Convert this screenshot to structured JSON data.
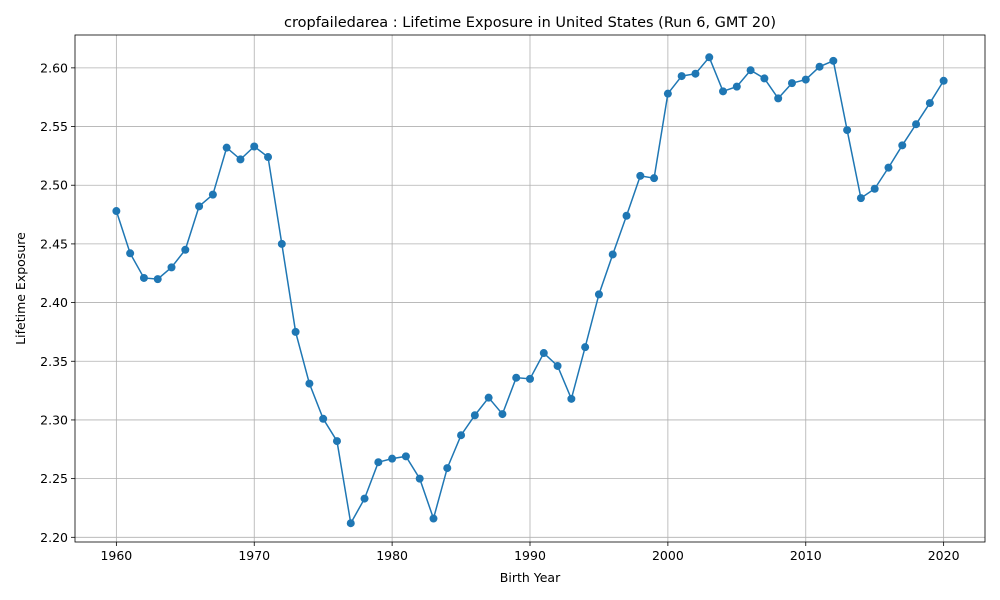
{
  "chart_data": {
    "type": "line",
    "title": "cropfailedarea : Lifetime Exposure in United States (Run 6, GMT 20)",
    "xlabel": "Birth Year",
    "ylabel": "Lifetime Exposure",
    "xlim": [
      1957,
      2023
    ],
    "ylim": [
      2.196,
      2.628
    ],
    "xticks": [
      1960,
      1970,
      1980,
      1990,
      2000,
      2010,
      2020
    ],
    "yticks": [
      2.2,
      2.25,
      2.3,
      2.35,
      2.4,
      2.45,
      2.5,
      2.55,
      2.6
    ],
    "grid": true,
    "color": "#1f77b4",
    "marker": "circle",
    "x": [
      1960,
      1961,
      1962,
      1963,
      1964,
      1965,
      1966,
      1967,
      1968,
      1969,
      1970,
      1971,
      1972,
      1973,
      1974,
      1975,
      1976,
      1977,
      1978,
      1979,
      1980,
      1981,
      1982,
      1983,
      1984,
      1985,
      1986,
      1987,
      1988,
      1989,
      1990,
      1991,
      1992,
      1993,
      1994,
      1995,
      1996,
      1997,
      1998,
      1999,
      2000,
      2001,
      2002,
      2003,
      2004,
      2005,
      2006,
      2007,
      2008,
      2009,
      2010,
      2011,
      2012,
      2013,
      2014,
      2015,
      2016,
      2017,
      2018,
      2019,
      2020
    ],
    "y": [
      2.478,
      2.442,
      2.421,
      2.42,
      2.43,
      2.445,
      2.482,
      2.492,
      2.532,
      2.522,
      2.533,
      2.524,
      2.45,
      2.375,
      2.331,
      2.301,
      2.282,
      2.212,
      2.233,
      2.264,
      2.267,
      2.269,
      2.25,
      2.216,
      2.259,
      2.287,
      2.304,
      2.319,
      2.305,
      2.336,
      2.335,
      2.357,
      2.346,
      2.318,
      2.362,
      2.407,
      2.441,
      2.474,
      2.508,
      2.506,
      2.578,
      2.593,
      2.595,
      2.609,
      2.58,
      2.584,
      2.598,
      2.591,
      2.574,
      2.587,
      2.59,
      2.601,
      2.606,
      2.547,
      2.489,
      2.497,
      2.515,
      2.534,
      2.552,
      2.57,
      2.589
    ]
  }
}
